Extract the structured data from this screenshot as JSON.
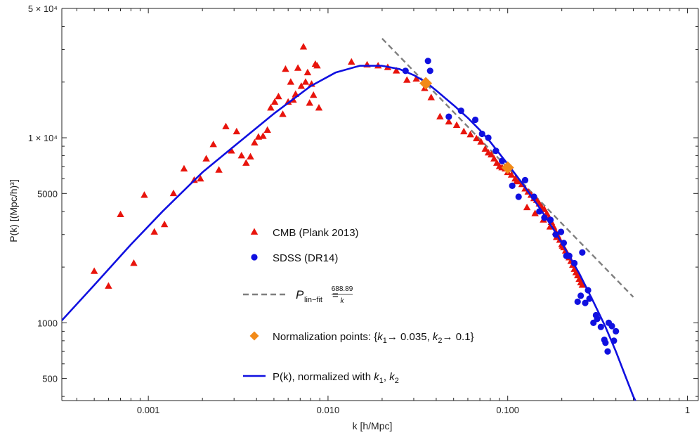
{
  "chart_data": {
    "type": "scatter",
    "title": "",
    "xlabel": "k [h/Mpc]",
    "ylabel": "P(k) [(Mpc/h)³]",
    "xscale": "log",
    "yscale": "log",
    "xlim": [
      0.00033,
      1.15
    ],
    "ylim": [
      380,
      50000
    ],
    "x_ticks": [
      {
        "value": 0.001,
        "label": "0.001"
      },
      {
        "value": 0.01,
        "label": "0.010"
      },
      {
        "value": 0.1,
        "label": "0.100"
      },
      {
        "value": 1,
        "label": "1"
      }
    ],
    "y_ticks": [
      {
        "value": 500,
        "label": "500"
      },
      {
        "value": 1000,
        "label": "1000"
      },
      {
        "value": 5000,
        "label": "5000"
      },
      {
        "value": 10000,
        "label": "1 × 10⁴"
      },
      {
        "value": 50000,
        "label": "5 × 10⁴"
      }
    ],
    "grid": false,
    "legend_placement": "center",
    "series": [
      {
        "name": "CMB (Plank 2013)",
        "kind": "scatter",
        "marker": "triangle",
        "color": "#e8140c",
        "points": [
          [
            0.0005,
            1900
          ],
          [
            0.0006,
            1580
          ],
          [
            0.0007,
            3850
          ],
          [
            0.00083,
            2100
          ],
          [
            0.00095,
            4900
          ],
          [
            0.00108,
            3100
          ],
          [
            0.00123,
            3400
          ],
          [
            0.00138,
            5000
          ],
          [
            0.00158,
            6800
          ],
          [
            0.0018,
            5900
          ],
          [
            0.00195,
            6000
          ],
          [
            0.0021,
            7700
          ],
          [
            0.0023,
            9200
          ],
          [
            0.00247,
            6700
          ],
          [
            0.0027,
            11500
          ],
          [
            0.0029,
            8500
          ],
          [
            0.0031,
            10800
          ],
          [
            0.0033,
            8000
          ],
          [
            0.0035,
            7300
          ],
          [
            0.0037,
            7900
          ],
          [
            0.0039,
            9400
          ],
          [
            0.0041,
            10100
          ],
          [
            0.00435,
            10200
          ],
          [
            0.0046,
            11000
          ],
          [
            0.0048,
            14500
          ],
          [
            0.00505,
            15600
          ],
          [
            0.0053,
            16700
          ],
          [
            0.0056,
            13400
          ],
          [
            0.006,
            15600
          ],
          [
            0.0058,
            23500
          ],
          [
            0.0062,
            20000
          ],
          [
            0.0064,
            16000
          ],
          [
            0.0066,
            17200
          ],
          [
            0.0068,
            23800
          ],
          [
            0.0071,
            19000
          ],
          [
            0.0073,
            31000
          ],
          [
            0.0075,
            20000
          ],
          [
            0.0077,
            22500
          ],
          [
            0.0079,
            15400
          ],
          [
            0.0081,
            19500
          ],
          [
            0.0083,
            17000
          ],
          [
            0.0085,
            25000
          ],
          [
            0.0087,
            24500
          ],
          [
            0.0089,
            14500
          ],
          [
            0.0135,
            25700
          ],
          [
            0.0165,
            24800
          ],
          [
            0.019,
            24500
          ],
          [
            0.0215,
            24000
          ],
          [
            0.024,
            23000
          ],
          [
            0.0275,
            20500
          ],
          [
            0.031,
            20800
          ],
          [
            0.0345,
            18500
          ],
          [
            0.0375,
            16500
          ],
          [
            0.042,
            13000
          ],
          [
            0.047,
            12200
          ],
          [
            0.052,
            11700
          ],
          [
            0.057,
            10800
          ],
          [
            0.062,
            10400
          ],
          [
            0.067,
            9900
          ],
          [
            0.071,
            9500
          ],
          [
            0.075,
            8700
          ],
          [
            0.078,
            8300
          ],
          [
            0.081,
            8100
          ],
          [
            0.084,
            7700
          ],
          [
            0.087,
            7300
          ],
          [
            0.09,
            7000
          ],
          [
            0.093,
            6900
          ],
          [
            0.097,
            6800
          ],
          [
            0.1,
            6500
          ],
          [
            0.105,
            6300
          ],
          [
            0.11,
            6000
          ],
          [
            0.115,
            5800
          ],
          [
            0.12,
            5600
          ],
          [
            0.125,
            5300
          ],
          [
            0.13,
            5100
          ],
          [
            0.135,
            4900
          ],
          [
            0.14,
            4700
          ],
          [
            0.145,
            4600
          ],
          [
            0.15,
            4400
          ],
          [
            0.155,
            4200
          ],
          [
            0.16,
            4100
          ],
          [
            0.165,
            3900
          ],
          [
            0.17,
            3700
          ],
          [
            0.175,
            3500
          ],
          [
            0.18,
            3300
          ],
          [
            0.185,
            3100
          ],
          [
            0.19,
            2950
          ],
          [
            0.195,
            2800
          ],
          [
            0.2,
            2650
          ],
          [
            0.205,
            2550
          ],
          [
            0.21,
            2450
          ],
          [
            0.215,
            2350
          ],
          [
            0.22,
            2250
          ],
          [
            0.225,
            2150
          ],
          [
            0.23,
            2050
          ],
          [
            0.235,
            1950
          ],
          [
            0.24,
            1870
          ],
          [
            0.245,
            1800
          ],
          [
            0.25,
            1720
          ],
          [
            0.255,
            1650
          ],
          [
            0.26,
            1600
          ],
          [
            0.112,
            5800
          ],
          [
            0.128,
            4200
          ],
          [
            0.142,
            3900
          ],
          [
            0.158,
            3600
          ],
          [
            0.172,
            3300
          ],
          [
            0.187,
            2900
          ],
          [
            0.202,
            2600
          ],
          [
            0.218,
            2300
          ]
        ]
      },
      {
        "name": "SDSS (DR14)",
        "kind": "scatter",
        "marker": "circle",
        "color": "#1010e0",
        "points": [
          [
            0.027,
            23000
          ],
          [
            0.036,
            26000
          ],
          [
            0.037,
            23000
          ],
          [
            0.047,
            13000
          ],
          [
            0.055,
            14000
          ],
          [
            0.066,
            12500
          ],
          [
            0.072,
            10500
          ],
          [
            0.078,
            10000
          ],
          [
            0.086,
            8500
          ],
          [
            0.093,
            7500
          ],
          [
            0.106,
            5500
          ],
          [
            0.115,
            4800
          ],
          [
            0.125,
            5900
          ],
          [
            0.14,
            4800
          ],
          [
            0.15,
            4000
          ],
          [
            0.16,
            3700
          ],
          [
            0.173,
            3600
          ],
          [
            0.185,
            3000
          ],
          [
            0.198,
            3100
          ],
          [
            0.205,
            2700
          ],
          [
            0.212,
            2300
          ],
          [
            0.22,
            2300
          ],
          [
            0.235,
            2100
          ],
          [
            0.245,
            1300
          ],
          [
            0.255,
            1400
          ],
          [
            0.27,
            1280
          ],
          [
            0.285,
            1350
          ],
          [
            0.3,
            1000
          ],
          [
            0.315,
            1050
          ],
          [
            0.33,
            950
          ],
          [
            0.345,
            810
          ],
          [
            0.36,
            700
          ],
          [
            0.38,
            960
          ],
          [
            0.4,
            900
          ],
          [
            0.39,
            800
          ],
          [
            0.365,
            1000
          ],
          [
            0.35,
            780
          ],
          [
            0.26,
            2400
          ],
          [
            0.28,
            1500
          ],
          [
            0.31,
            1100
          ]
        ]
      },
      {
        "name": "P(k), normalized with k₁, k₂",
        "kind": "line",
        "color": "#1010e0",
        "points": [
          [
            0.00033,
            1030
          ],
          [
            0.0005,
            1600
          ],
          [
            0.0008,
            2650
          ],
          [
            0.0012,
            4000
          ],
          [
            0.002,
            6500
          ],
          [
            0.003,
            9000
          ],
          [
            0.005,
            13500
          ],
          [
            0.008,
            19000
          ],
          [
            0.011,
            22500
          ],
          [
            0.015,
            24500
          ],
          [
            0.02,
            24500
          ],
          [
            0.025,
            23500
          ],
          [
            0.03,
            21800
          ],
          [
            0.035,
            20000
          ],
          [
            0.04,
            18000
          ],
          [
            0.05,
            15000
          ],
          [
            0.06,
            12800
          ],
          [
            0.07,
            11000
          ],
          [
            0.08,
            9500
          ],
          [
            0.1,
            7200
          ],
          [
            0.12,
            5700
          ],
          [
            0.15,
            4200
          ],
          [
            0.18,
            3200
          ],
          [
            0.2,
            2700
          ],
          [
            0.25,
            1850
          ],
          [
            0.3,
            1300
          ],
          [
            0.35,
            950
          ],
          [
            0.4,
            700
          ],
          [
            0.45,
            520
          ],
          [
            0.5,
            400
          ],
          [
            0.52,
            370
          ]
        ]
      },
      {
        "name": "P_lin−fit",
        "kind": "dashed-line",
        "color": "#7f7f7f",
        "points": [
          [
            0.02,
            34400
          ],
          [
            0.5,
            1378
          ]
        ]
      },
      {
        "name": "Normalization points: {k₁→ 0.035, k₂→ 0.1}",
        "kind": "scatter",
        "marker": "diamond",
        "color": "#f28a18",
        "points": [
          [
            0.035,
            19700
          ],
          [
            0.1,
            6900
          ]
        ]
      }
    ],
    "legend": [
      {
        "label": "CMB (Plank 2013)",
        "marker": "triangle"
      },
      {
        "label": "SDSS (DR14)",
        "marker": "circle"
      },
      {
        "label": "P_lin−fit",
        "marker": "dash",
        "formula": {
          "lhs_main": "P",
          "lhs_sub": "lin−fit",
          "equals": "=",
          "numerator": "688.89",
          "denominator": "k"
        }
      },
      {
        "label": "Normalization points: {k₁→ 0.035, k₂→ 0.1}",
        "marker": "diamond",
        "rich": {
          "pre": "Normalization points: {",
          "k": "k",
          "s1": "1",
          "mid1": "→ 0.035, ",
          "s2": "2",
          "mid2": "→ 0.1}"
        }
      },
      {
        "label": "P(k), normalized with k₁, k₂",
        "marker": "line",
        "rich": {
          "pre": "P(k), normalized with ",
          "k": "k",
          "s1": "1",
          "mid1": ", ",
          "s2": "2",
          "mid2": ""
        }
      }
    ],
    "colors": {
      "cmb": "#e8140c",
      "sdss": "#1010e0",
      "fit": "#7f7f7f",
      "norm": "#f28a18",
      "curve": "#1010e0",
      "axis": "#222222"
    }
  }
}
